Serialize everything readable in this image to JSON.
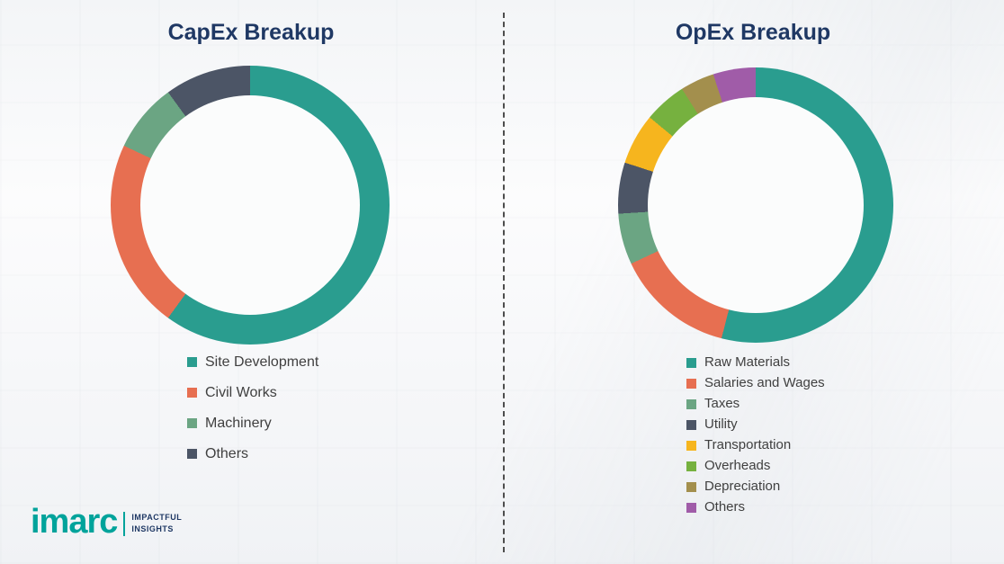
{
  "chart_data": [
    {
      "type": "pie",
      "subtype": "donut",
      "title": "CapEx Breakup",
      "categories": [
        "Site Development",
        "Civil Works",
        "Machinery",
        "Others"
      ],
      "values": [
        60,
        22,
        8,
        10
      ],
      "unit": "percent_estimated",
      "colors": [
        "#2a9d8f",
        "#e76f51",
        "#6ba583",
        "#4c5566"
      ],
      "legend_position": "bottom",
      "start_angle_deg": 0,
      "direction": "clockwise"
    },
    {
      "type": "pie",
      "subtype": "donut",
      "title": "OpEx Breakup",
      "categories": [
        "Raw Materials",
        "Salaries and Wages",
        "Taxes",
        "Utility",
        "Transportation",
        "Overheads",
        "Depreciation",
        "Others"
      ],
      "values": [
        54,
        14,
        6,
        6,
        6,
        5,
        4,
        5
      ],
      "unit": "percent_estimated",
      "colors": [
        "#2a9d8f",
        "#e76f51",
        "#6ba583",
        "#4c5566",
        "#f6b51e",
        "#76b13f",
        "#a38f4d",
        "#a05ca8"
      ],
      "legend_position": "bottom",
      "start_angle_deg": 0,
      "direction": "clockwise"
    }
  ],
  "logo": {
    "brand": "imarc",
    "tagline_line1": "IMPACTFUL",
    "tagline_line2": "INSIGHTS"
  }
}
